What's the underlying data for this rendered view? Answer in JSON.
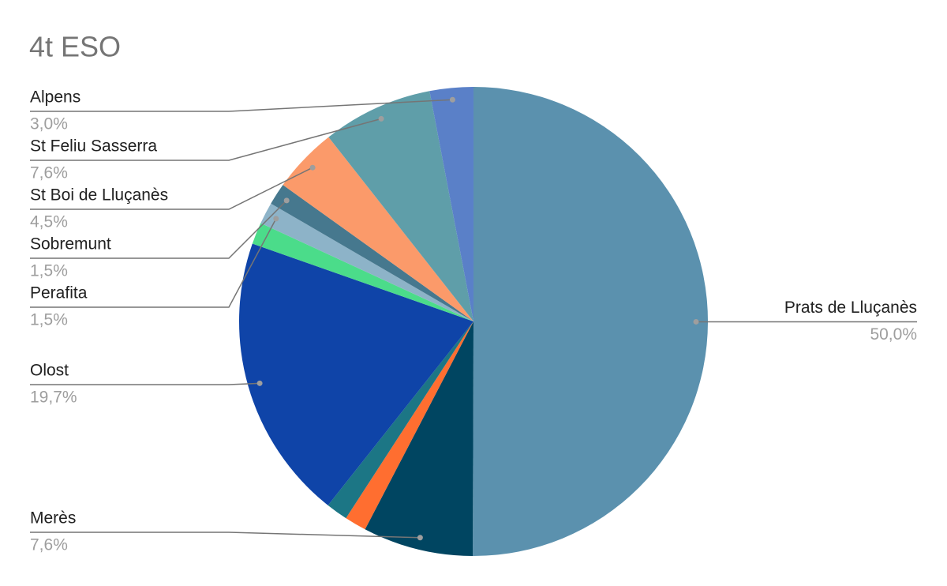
{
  "chart_data": {
    "type": "pie",
    "title": "4t ESO",
    "categories": [
      "Prats de Lluçanès",
      "Merès",
      null,
      null,
      "Olost",
      null,
      "Perafita",
      "Sobremunt",
      "St Boi de Lluçanès",
      "St Feliu Sasserra",
      "Alpens"
    ],
    "values": [
      50.0,
      7.6,
      1.5,
      1.5,
      19.7,
      1.5,
      1.5,
      1.5,
      4.5,
      7.6,
      3.0
    ],
    "value_labels": [
      "50,0%",
      "7,6%",
      null,
      null,
      "19,7%",
      null,
      "1,5%",
      "1,5%",
      "4,5%",
      "7,6%",
      "3,0%"
    ],
    "colors": [
      "#5b91ae",
      "#004561",
      "#ff6e30",
      "#1c7685",
      "#0f44a8",
      "#4bdc8a",
      "#8db3c8",
      "#46788e",
      "#fb9a6a",
      "#5f9ea9",
      "#5a80c8"
    ]
  }
}
